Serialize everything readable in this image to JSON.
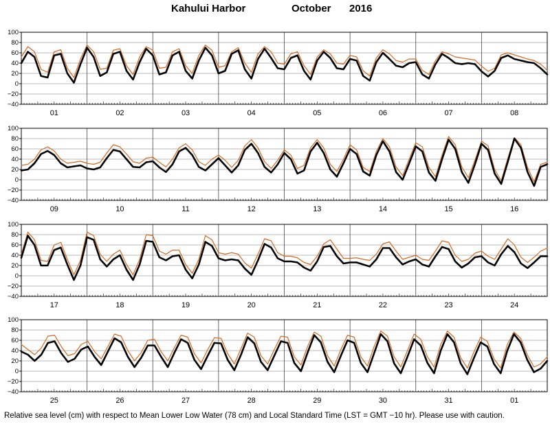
{
  "title": {
    "station": "Kahului Harbor",
    "month": "October",
    "year": "2016"
  },
  "caption": "Relative sea level (cm) with respect to Mean Lower Low Water (78 cm) and Local Standard Time (LST = GMT −10 hr). Please use with caution.",
  "colors": {
    "observed": "#000000",
    "predicted": "#d2691e",
    "grid": "#555555"
  },
  "chart_data": [
    {
      "type": "line",
      "ylim": [
        -40,
        100
      ],
      "yticks": [
        "100",
        "80",
        "60",
        "40",
        "20",
        "0",
        "−20",
        "−40"
      ],
      "day_labels": [
        "01",
        "02",
        "03",
        "04",
        "05",
        "06",
        "07",
        "08"
      ],
      "series": [
        {
          "values": [
            40,
            62,
            52,
            15,
            12,
            55,
            58,
            20,
            2,
            38,
            70,
            52,
            15,
            22,
            58,
            62,
            25,
            8,
            42,
            68,
            55,
            18,
            22,
            55,
            62,
            25,
            10,
            45,
            70,
            55,
            20,
            25,
            58,
            65,
            28,
            10,
            48,
            68,
            50,
            30,
            28,
            50,
            55,
            25,
            8,
            45,
            62,
            50,
            30,
            28,
            48,
            45,
            15,
            6,
            42,
            60,
            48,
            35,
            32,
            40,
            42,
            18,
            10,
            38,
            58,
            50,
            40,
            38,
            40,
            38,
            24,
            14,
            25,
            50,
            55,
            48,
            45,
            42,
            40,
            30,
            18
          ]
        },
        {
          "values": [
            52,
            72,
            62,
            28,
            22,
            62,
            66,
            30,
            12,
            48,
            75,
            62,
            28,
            30,
            65,
            68,
            35,
            18,
            52,
            72,
            65,
            30,
            32,
            62,
            68,
            35,
            20,
            55,
            75,
            65,
            32,
            35,
            62,
            70,
            40,
            22,
            58,
            72,
            62,
            40,
            38,
            58,
            62,
            35,
            18,
            52,
            66,
            58,
            40,
            38,
            55,
            52,
            25,
            15,
            50,
            66,
            58,
            45,
            42,
            48,
            48,
            26,
            18,
            45,
            62,
            58,
            52,
            50,
            48,
            46,
            34,
            24,
            30,
            56,
            60,
            56,
            52,
            48,
            45,
            38,
            26
          ]
        }
      ]
    },
    {
      "type": "line",
      "ylim": [
        -40,
        100
      ],
      "yticks": [
        "100",
        "80",
        "60",
        "40",
        "20",
        "0",
        "−20",
        "−40"
      ],
      "day_labels": [
        "09",
        "10",
        "11",
        "12",
        "13",
        "14",
        "15",
        "16"
      ],
      "series": [
        {
          "values": [
            18,
            20,
            32,
            50,
            56,
            48,
            32,
            24,
            26,
            28,
            22,
            20,
            24,
            42,
            58,
            55,
            40,
            25,
            24,
            34,
            36,
            24,
            15,
            30,
            55,
            62,
            48,
            25,
            18,
            30,
            42,
            28,
            14,
            28,
            58,
            70,
            52,
            25,
            14,
            30,
            52,
            40,
            12,
            18,
            55,
            72,
            52,
            20,
            6,
            32,
            60,
            50,
            16,
            8,
            48,
            75,
            55,
            15,
            0,
            32,
            65,
            55,
            14,
            -2,
            40,
            78,
            60,
            15,
            -6,
            30,
            70,
            58,
            12,
            -8,
            35,
            80,
            62,
            15,
            -12,
            25,
            30
          ]
        },
        {
          "values": [
            28,
            30,
            40,
            58,
            64,
            56,
            40,
            32,
            34,
            36,
            32,
            30,
            34,
            52,
            68,
            64,
            50,
            35,
            32,
            42,
            44,
            34,
            25,
            40,
            62,
            70,
            58,
            35,
            28,
            40,
            48,
            38,
            24,
            38,
            66,
            78,
            62,
            35,
            22,
            38,
            58,
            48,
            22,
            28,
            62,
            78,
            62,
            30,
            16,
            40,
            68,
            58,
            24,
            16,
            55,
            80,
            64,
            25,
            8,
            40,
            72,
            64,
            24,
            6,
            48,
            84,
            68,
            25,
            4,
            38,
            75,
            66,
            20,
            -2,
            42,
            82,
            68,
            24,
            -4,
            30,
            34
          ]
        }
      ]
    },
    {
      "type": "line",
      "ylim": [
        -40,
        100
      ],
      "yticks": [
        "100",
        "80",
        "60",
        "40",
        "20",
        "0",
        "−20",
        "−40"
      ],
      "day_labels": [
        "17",
        "18",
        "19",
        "20",
        "21",
        "22",
        "23",
        "24"
      ],
      "series": [
        {
          "values": [
            35,
            78,
            60,
            20,
            20,
            50,
            55,
            22,
            -8,
            20,
            75,
            70,
            32,
            18,
            32,
            40,
            12,
            -8,
            22,
            68,
            66,
            36,
            30,
            38,
            40,
            12,
            -5,
            22,
            66,
            58,
            34,
            30,
            32,
            30,
            14,
            2,
            30,
            62,
            55,
            34,
            28,
            28,
            26,
            16,
            10,
            28,
            56,
            58,
            38,
            24,
            26,
            26,
            22,
            18,
            32,
            54,
            54,
            36,
            22,
            28,
            32,
            22,
            18,
            38,
            56,
            52,
            28,
            16,
            24,
            36,
            38,
            26,
            20,
            42,
            58,
            46,
            24,
            15,
            26,
            38,
            38
          ]
        },
        {
          "values": [
            42,
            85,
            70,
            30,
            28,
            60,
            65,
            32,
            2,
            30,
            85,
            78,
            42,
            28,
            42,
            50,
            22,
            2,
            32,
            80,
            78,
            48,
            42,
            50,
            50,
            22,
            5,
            32,
            78,
            70,
            45,
            42,
            45,
            42,
            25,
            15,
            42,
            72,
            68,
            45,
            38,
            38,
            35,
            26,
            22,
            38,
            62,
            70,
            52,
            34,
            34,
            35,
            32,
            30,
            42,
            62,
            66,
            48,
            32,
            36,
            40,
            32,
            30,
            48,
            68,
            65,
            40,
            28,
            32,
            44,
            48,
            38,
            32,
            52,
            72,
            60,
            36,
            26,
            36,
            48,
            54
          ]
        }
      ]
    },
    {
      "type": "line",
      "ylim": [
        -40,
        100
      ],
      "yticks": [
        "100",
        "80",
        "60",
        "40",
        "20",
        "0",
        "−20",
        "−40"
      ],
      "day_labels": [
        "25",
        "26",
        "27",
        "28",
        "29",
        "30",
        "31",
        "01"
      ],
      "series": [
        {
          "values": [
            38,
            32,
            20,
            32,
            55,
            58,
            35,
            18,
            24,
            42,
            48,
            28,
            12,
            38,
            64,
            56,
            28,
            8,
            26,
            50,
            50,
            28,
            8,
            36,
            62,
            55,
            22,
            4,
            30,
            55,
            54,
            22,
            2,
            32,
            66,
            54,
            18,
            2,
            30,
            58,
            55,
            16,
            0,
            36,
            70,
            56,
            18,
            -2,
            30,
            60,
            55,
            16,
            -2,
            35,
            72,
            58,
            15,
            -4,
            28,
            62,
            50,
            16,
            -4,
            40,
            72,
            56,
            15,
            -6,
            26,
            56,
            48,
            14,
            -4,
            40,
            72,
            56,
            22,
            -2,
            5,
            20
          ]
        },
        {
          "values": [
            52,
            42,
            32,
            45,
            68,
            70,
            48,
            30,
            34,
            52,
            58,
            38,
            24,
            48,
            72,
            68,
            40,
            20,
            36,
            60,
            62,
            38,
            20,
            46,
            70,
            66,
            34,
            16,
            42,
            65,
            64,
            34,
            14,
            44,
            74,
            66,
            30,
            14,
            42,
            68,
            66,
            28,
            12,
            48,
            76,
            68,
            30,
            10,
            42,
            70,
            66,
            28,
            10,
            48,
            78,
            68,
            28,
            8,
            40,
            72,
            62,
            28,
            8,
            52,
            78,
            66,
            26,
            6,
            38,
            66,
            58,
            24,
            6,
            52,
            76,
            64,
            32,
            8,
            14,
            28
          ]
        }
      ]
    }
  ]
}
